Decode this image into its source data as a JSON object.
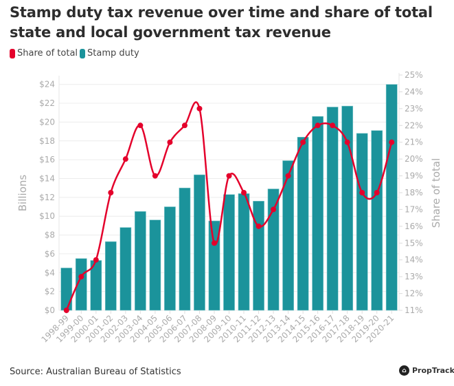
{
  "chart_data": {
    "type": "bar+line",
    "title": "Stamp duty tax revenue over time and share of total state and local government tax revenue",
    "categories": [
      "1998-99",
      "1999-00",
      "2000-01",
      "2001-02",
      "2002-03",
      "2003-04",
      "2004-05",
      "2005-06",
      "2006-07",
      "2007-08",
      "2008-09",
      "2009-10",
      "2010-11",
      "2011-12",
      "2012-13",
      "2013-14",
      "2014-15",
      "2015-16",
      "2016-17",
      "2017-18",
      "2018-19",
      "2019-20",
      "2020-21"
    ],
    "series": [
      {
        "name": "Stamp duty",
        "type": "bar",
        "axis": "left",
        "color": "#1b939b",
        "values": [
          4.5,
          5.5,
          5.3,
          7.3,
          8.8,
          10.5,
          9.6,
          11.0,
          13.0,
          14.4,
          9.5,
          12.3,
          12.4,
          11.6,
          12.9,
          15.9,
          18.4,
          20.6,
          21.6,
          21.7,
          18.8,
          19.1,
          24.0
        ]
      },
      {
        "name": "Share of total",
        "type": "line",
        "axis": "right",
        "color": "#e4002b",
        "values": [
          11,
          13,
          14,
          18,
          20,
          22,
          19,
          21,
          22,
          23,
          15,
          19,
          18,
          16,
          17,
          19,
          21,
          22,
          22,
          21,
          18,
          18,
          21
        ]
      }
    ],
    "ylabel": "Billions",
    "ylabel_right": "Share of total",
    "ylim": [
      0,
      24
    ],
    "ylim_right": [
      11,
      25
    ],
    "yticks": [
      "$0",
      "$2",
      "$4",
      "$6",
      "$8",
      "$10",
      "$12",
      "$14",
      "$16",
      "$18",
      "$20",
      "$22",
      "$24"
    ],
    "yticks_right": [
      "11%",
      "12%",
      "13%",
      "14%",
      "15%",
      "16%",
      "17%",
      "18%",
      "19%",
      "20%",
      "21%",
      "22%",
      "23%",
      "24%",
      "25%"
    ],
    "grid": true,
    "legend": "top-left"
  },
  "legend": {
    "items": [
      "Share of total",
      "Stamp duty"
    ]
  },
  "source": "Source: Australian Bureau of Statistics",
  "logo": "PropTrack"
}
